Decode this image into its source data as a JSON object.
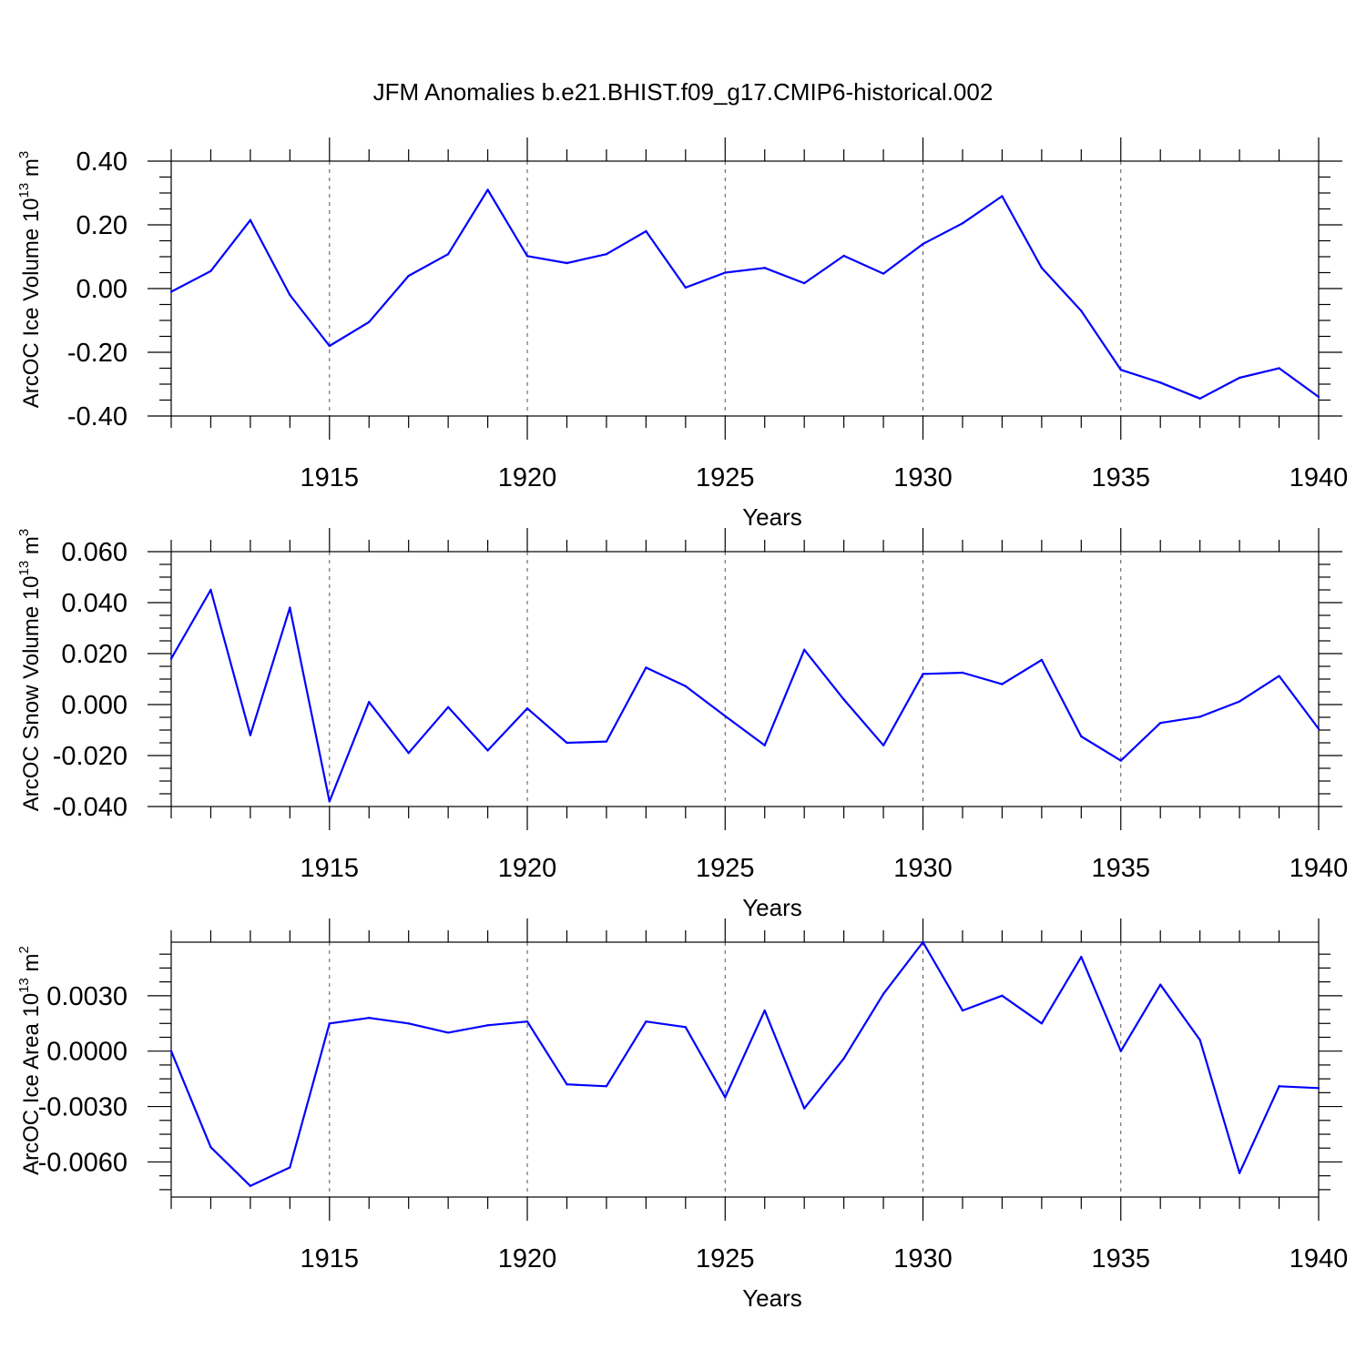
{
  "figure_title": "JFM Anomalies b.e21.BHIST.f09_g17.CMIP6-historical.002",
  "chart_data": [
    {
      "type": "line",
      "title": "",
      "xlabel": "Years",
      "ylabel": "ArcOC Ice Volume 10^13 m^3",
      "ylabel_text": "ArcOC Ice Volume 10",
      "ylabel_exponent": "13",
      "ylabel_unit": " m",
      "ylabel_unit_exponent": "3",
      "xlim": [
        1911,
        1940
      ],
      "ylim": [
        -0.4,
        0.4
      ],
      "yticks": [
        "-0.40",
        "-0.20",
        "0.00",
        "0.20",
        "0.40"
      ],
      "ytick_values": [
        -0.4,
        -0.2,
        0.0,
        0.2,
        0.4
      ],
      "xticks": [
        "1915",
        "1920",
        "1925",
        "1930",
        "1935",
        "1940"
      ],
      "xtick_values": [
        1915,
        1920,
        1925,
        1930,
        1935,
        1940
      ],
      "grid": "vertical dashed at labeled years",
      "x": [
        1911,
        1912,
        1913,
        1914,
        1915,
        1916,
        1917,
        1918,
        1919,
        1920,
        1921,
        1922,
        1923,
        1924,
        1925,
        1926,
        1927,
        1928,
        1929,
        1930,
        1931,
        1932,
        1933,
        1934,
        1935,
        1936,
        1937,
        1938,
        1939,
        1940
      ],
      "series": [
        {
          "color": "#0000ff",
          "values": [
            -0.01,
            0.055,
            0.215,
            -0.02,
            -0.18,
            -0.105,
            0.04,
            0.108,
            0.31,
            0.102,
            0.08,
            0.108,
            0.18,
            0.003,
            0.05,
            0.065,
            0.017,
            0.103,
            0.047,
            0.14,
            0.205,
            0.29,
            0.065,
            -0.07,
            -0.255,
            -0.295,
            -0.345,
            -0.28,
            -0.25,
            -0.34
          ]
        }
      ]
    },
    {
      "type": "line",
      "title": "",
      "xlabel": "Years",
      "ylabel": "ArcOC Snow Volume 10^13 m^3",
      "ylabel_text": "ArcOC Snow Volume 10",
      "ylabel_exponent": "13",
      "ylabel_unit": " m",
      "ylabel_unit_exponent": "3",
      "xlim": [
        1911,
        1940
      ],
      "ylim": [
        -0.04,
        0.06
      ],
      "yticks": [
        "-0.040",
        "-0.020",
        "0.000",
        "0.020",
        "0.040",
        "0.060"
      ],
      "ytick_values": [
        -0.04,
        -0.02,
        0.0,
        0.02,
        0.04,
        0.06
      ],
      "xticks": [
        "1915",
        "1920",
        "1925",
        "1930",
        "1935",
        "1940"
      ],
      "xtick_values": [
        1915,
        1920,
        1925,
        1930,
        1935,
        1940
      ],
      "grid": "vertical dashed at labeled years",
      "x": [
        1911,
        1912,
        1913,
        1914,
        1915,
        1916,
        1917,
        1918,
        1919,
        1920,
        1921,
        1922,
        1923,
        1924,
        1925,
        1926,
        1927,
        1928,
        1929,
        1930,
        1931,
        1932,
        1933,
        1934,
        1935,
        1936,
        1937,
        1938,
        1939,
        1940
      ],
      "series": [
        {
          "color": "#0000ff",
          "values": [
            0.018,
            0.045,
            -0.012,
            0.038,
            -0.038,
            0.001,
            -0.019,
            -0.001,
            -0.018,
            -0.0015,
            -0.015,
            -0.0145,
            0.0145,
            0.0072,
            -0.0045,
            -0.016,
            0.0215,
            0.002,
            -0.016,
            0.012,
            0.0125,
            0.008,
            0.0175,
            -0.0125,
            -0.022,
            -0.0072,
            -0.0048,
            0.0012,
            0.0112,
            -0.0095
          ]
        }
      ]
    },
    {
      "type": "line",
      "title": "",
      "xlabel": "Years",
      "ylabel": "ArcOC Ice Area 10^13 m^2",
      "ylabel_text": "ArcOC Ice Area 10",
      "ylabel_exponent": "13",
      "ylabel_unit": " m",
      "ylabel_unit_exponent": "2",
      "xlim": [
        1911,
        1940
      ],
      "ylim": [
        -0.0079,
        0.0059
      ],
      "yticks": [
        "-0.0060",
        "-0.0030",
        "0.0000",
        "0.0030"
      ],
      "ytick_values": [
        -0.006,
        -0.003,
        0.0,
        0.003
      ],
      "xticks": [
        "1915",
        "1920",
        "1925",
        "1930",
        "1935",
        "1940"
      ],
      "xtick_values": [
        1915,
        1920,
        1925,
        1930,
        1935,
        1940
      ],
      "grid": "vertical dashed at labeled years",
      "x": [
        1911,
        1912,
        1913,
        1914,
        1915,
        1916,
        1917,
        1918,
        1919,
        1920,
        1921,
        1922,
        1923,
        1924,
        1925,
        1926,
        1927,
        1928,
        1929,
        1930,
        1931,
        1932,
        1933,
        1934,
        1935,
        1936,
        1937,
        1938,
        1939,
        1940
      ],
      "series": [
        {
          "color": "#0000ff",
          "values": [
            0.0,
            -0.0052,
            -0.0073,
            -0.0063,
            0.0015,
            0.0018,
            0.0015,
            0.001,
            0.0014,
            0.0016,
            -0.0018,
            -0.0019,
            0.0016,
            0.0013,
            -0.0025,
            0.0022,
            -0.0031,
            -0.0004,
            0.0031,
            0.0059,
            0.0022,
            0.003,
            0.0015,
            0.0051,
            0.0,
            0.0036,
            0.0006,
            -0.0066,
            -0.0019,
            -0.002
          ]
        }
      ]
    }
  ]
}
